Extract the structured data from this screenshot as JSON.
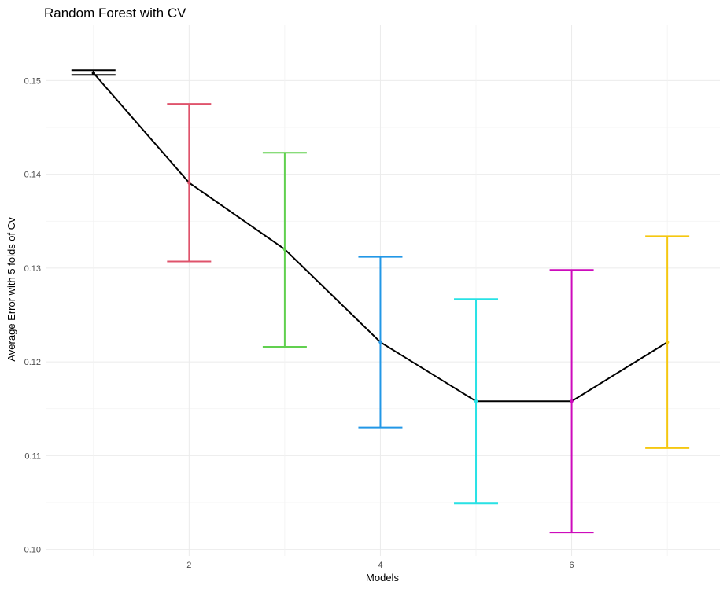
{
  "chart_data": {
    "type": "line",
    "title": "Random Forest with CV",
    "xlabel": "Models",
    "ylabel": "Average Error with 5 folds of Cv",
    "xlim": [
      0.5,
      7.55
    ],
    "ylim": [
      0.0993,
      0.1559
    ],
    "xticks": [
      2,
      4,
      6
    ],
    "yticks": [
      0.1,
      0.11,
      0.12,
      0.13,
      0.14,
      0.15
    ],
    "ytick_labels": [
      "0.10",
      "0.11",
      "0.12",
      "0.13",
      "0.14",
      "0.15"
    ],
    "grid": true,
    "legend": "none",
    "line_color": "#000000",
    "points": [
      {
        "x": 1,
        "y": 0.1508,
        "lower": 0.1506,
        "upper": 0.1511,
        "color": "#000000"
      },
      {
        "x": 2,
        "y": 0.1391,
        "lower": 0.1307,
        "upper": 0.1475,
        "color": "#DF536B"
      },
      {
        "x": 3,
        "y": 0.132,
        "lower": 0.1216,
        "upper": 0.1423,
        "color": "#61D04F"
      },
      {
        "x": 4,
        "y": 0.1221,
        "lower": 0.113,
        "upper": 0.1312,
        "color": "#2297E6"
      },
      {
        "x": 5,
        "y": 0.1158,
        "lower": 0.1049,
        "upper": 0.1267,
        "color": "#28E2E5"
      },
      {
        "x": 6,
        "y": 0.1158,
        "lower": 0.1018,
        "upper": 0.1298,
        "color": "#CD0BBC"
      },
      {
        "x": 7,
        "y": 0.1221,
        "lower": 0.1108,
        "upper": 0.1334,
        "color": "#F5C710"
      }
    ]
  }
}
